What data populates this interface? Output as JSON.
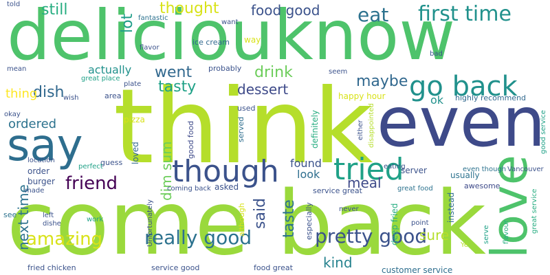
{
  "words": [
    {
      "text": "think",
      "color": "#b5de2b"
    },
    {
      "text": "come back",
      "color": "#9ad93c"
    },
    {
      "text": "deliciouknow",
      "color": "#4ec36b"
    },
    {
      "text": "even",
      "color": "#3e4a89"
    },
    {
      "text": "say",
      "color": "#2e6e8e"
    },
    {
      "text": "love",
      "color": "#4ec36b"
    },
    {
      "text": "though",
      "color": "#3b528b"
    },
    {
      "text": "tried",
      "color": "#1fa187"
    },
    {
      "text": "go back",
      "color": "#21918c"
    },
    {
      "text": "first time",
      "color": "#21918c"
    },
    {
      "text": "really good",
      "color": "#2c728e"
    },
    {
      "text": "pretty good",
      "color": "#3b528b"
    },
    {
      "text": "amazing",
      "color": "#d8e219"
    },
    {
      "text": "friend",
      "color": "#440154"
    },
    {
      "text": "dessert",
      "color": "#3e4a89"
    },
    {
      "text": "food good",
      "color": "#3b528b"
    },
    {
      "text": "eat",
      "color": "#2c728e"
    },
    {
      "text": "thought",
      "color": "#d8e219"
    },
    {
      "text": "still",
      "color": "#27ad81"
    },
    {
      "text": "went",
      "color": "#31688e"
    },
    {
      "text": "drink",
      "color": "#6ccd5a"
    },
    {
      "text": "maybe",
      "color": "#31688e"
    },
    {
      "text": "tasty",
      "color": "#1fa187"
    },
    {
      "text": "dish",
      "color": "#31688e"
    },
    {
      "text": "thing",
      "color": "#fde725"
    },
    {
      "text": "ordered",
      "color": "#2c728e"
    },
    {
      "text": "actually",
      "color": "#21918c"
    },
    {
      "text": "lot",
      "color": "#1f9e89"
    },
    {
      "text": "said",
      "color": "#3b528b"
    },
    {
      "text": "taste",
      "color": "#2c728e"
    },
    {
      "text": "dim sum",
      "color": "#6ccd5a"
    },
    {
      "text": "next time",
      "color": "#2c728e"
    },
    {
      "text": "meal",
      "color": "#3e4a89"
    },
    {
      "text": "sure",
      "color": "#b5de2b"
    },
    {
      "text": "found",
      "color": "#3b528b"
    },
    {
      "text": "look",
      "color": "#2e6e8e"
    },
    {
      "text": "kind",
      "color": "#26828e"
    },
    {
      "text": "good food",
      "color": "#3e4a89"
    },
    {
      "text": "ok",
      "color": "#21918c"
    },
    {
      "text": "highly recommend",
      "color": "#31688e"
    },
    {
      "text": "happy hour",
      "color": "#d8e219"
    },
    {
      "text": "ice cream",
      "color": "#31688e"
    },
    {
      "text": "way",
      "color": "#d8e219"
    },
    {
      "text": "probably",
      "color": "#3b528b"
    },
    {
      "text": "area",
      "color": "#3b528b"
    },
    {
      "text": "great place",
      "color": "#1fa187"
    },
    {
      "text": "pizza",
      "color": "#d8e219"
    },
    {
      "text": "used",
      "color": "#3b528b"
    },
    {
      "text": "served",
      "color": "#2e6e8e"
    },
    {
      "text": "definitely",
      "color": "#27ad81"
    },
    {
      "text": "server",
      "color": "#3b528b"
    },
    {
      "text": "even though",
      "color": "#2c728e"
    },
    {
      "text": "Vancouver",
      "color": "#3b528b"
    },
    {
      "text": "usually",
      "color": "#2c728e"
    },
    {
      "text": "service great",
      "color": "#3b528b"
    },
    {
      "text": "great food",
      "color": "#2c728e"
    },
    {
      "text": "awesome",
      "color": "#3e4a89"
    },
    {
      "text": "instead",
      "color": "#2e6e8e"
    },
    {
      "text": "deep fried",
      "color": "#27ad81"
    },
    {
      "text": "especially",
      "color": "#3b528b"
    },
    {
      "text": "although",
      "color": "#d8e219"
    },
    {
      "text": "eating",
      "color": "#3b528b"
    },
    {
      "text": "loved",
      "color": "#31688e"
    },
    {
      "text": "guess",
      "color": "#3b528b"
    },
    {
      "text": "order",
      "color": "#3b528b"
    },
    {
      "text": "burger",
      "color": "#3b528b"
    },
    {
      "text": "made",
      "color": "#3b528b"
    },
    {
      "text": "see",
      "color": "#2c728e"
    },
    {
      "text": "left",
      "color": "#3b528b"
    },
    {
      "text": "dishe",
      "color": "#3b528b"
    },
    {
      "text": "work",
      "color": "#1fa187"
    },
    {
      "text": "customer service",
      "color": "#2e6e8e"
    },
    {
      "text": "service good",
      "color": "#3b528b"
    },
    {
      "text": "food great",
      "color": "#3b528b"
    },
    {
      "text": "fried chicken",
      "color": "#3b528b"
    },
    {
      "text": "point",
      "color": "#3b528b"
    },
    {
      "text": "never",
      "color": "#3b528b"
    },
    {
      "text": "told",
      "color": "#3b528b"
    },
    {
      "text": "fantastic",
      "color": "#2c728e"
    },
    {
      "text": "want",
      "color": "#3b528b"
    },
    {
      "text": "flavor",
      "color": "#3b528b"
    },
    {
      "text": "bad",
      "color": "#3b528b"
    },
    {
      "text": "mean",
      "color": "#3b528b"
    },
    {
      "text": "wish",
      "color": "#3b528b"
    },
    {
      "text": "plate",
      "color": "#3b528b"
    },
    {
      "text": "okay",
      "color": "#3b528b"
    },
    {
      "text": "location",
      "color": "#3b528b"
    },
    {
      "text": "seem",
      "color": "#3b528b"
    },
    {
      "text": "asked",
      "color": "#3b528b"
    },
    {
      "text": "coming back",
      "color": "#3b528b"
    },
    {
      "text": "perfect",
      "color": "#1fa187"
    },
    {
      "text": "serve",
      "color": "#1fa187"
    },
    {
      "text": "flavour",
      "color": "#27ad81"
    },
    {
      "text": "Ye",
      "color": "#b5de2b"
    },
    {
      "text": "disappointed",
      "color": "#b5de2b"
    },
    {
      "text": "either",
      "color": "#3b528b"
    },
    {
      "text": "great service",
      "color": "#27ad81"
    },
    {
      "text": "good service",
      "color": "#1fa187"
    },
    {
      "text": "Unfortunately",
      "color": "#3b528b"
    }
  ]
}
